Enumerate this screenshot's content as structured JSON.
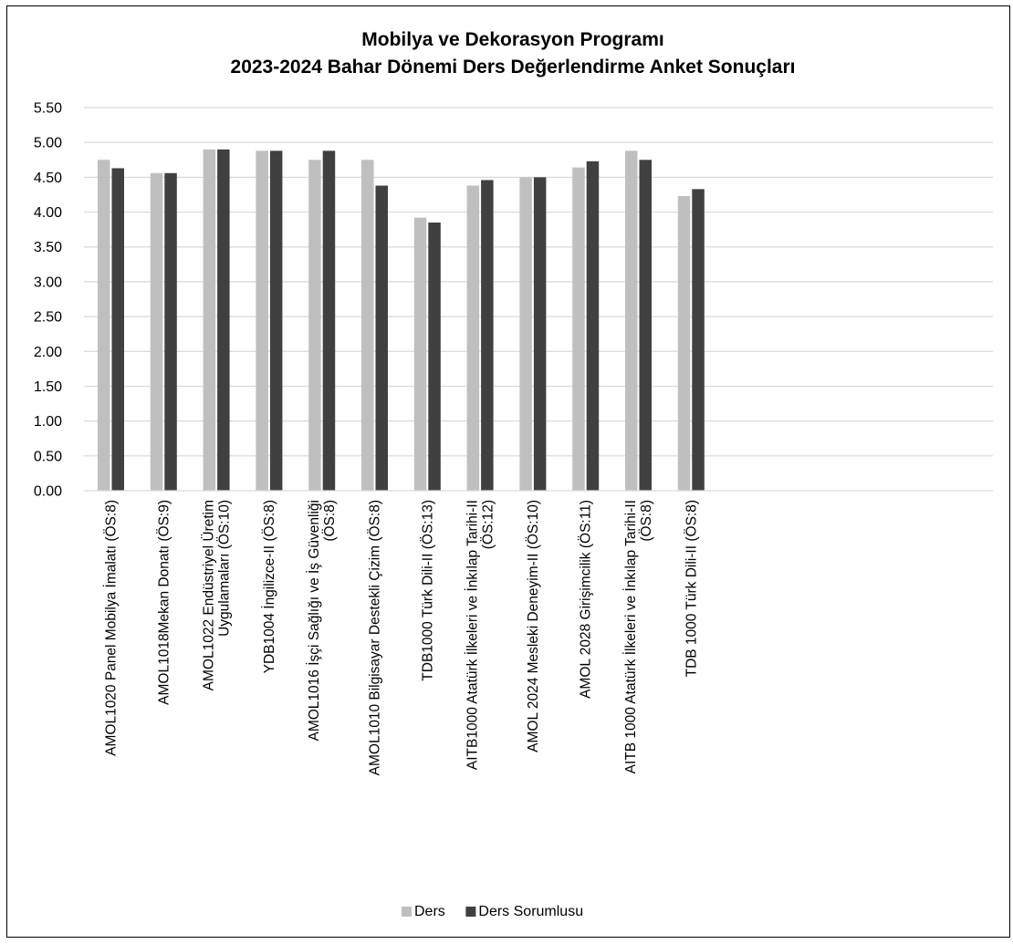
{
  "chart_data": {
    "type": "bar",
    "title": "Mobilya ve Dekorasyon Programı",
    "subtitle": "2023-2024 Bahar Dönemi Ders Değerlendirme Anket Sonuçları",
    "xlabel": "",
    "ylabel": "",
    "ylim": [
      0,
      5.5
    ],
    "yticks": [
      "0.00",
      "0.50",
      "1.00",
      "1.50",
      "2.00",
      "2.50",
      "3.00",
      "3.50",
      "4.00",
      "4.50",
      "5.00",
      "5.50"
    ],
    "grid": true,
    "legend_position": "bottom",
    "categories": [
      [
        "AMOL1020 Panel Mobilya İmalatı (ÖS:8)"
      ],
      [
        "AMOL1018Mekan Donatı (ÖS:9)"
      ],
      [
        "AMOL1022 Endüstriyel Üretim",
        "Uygulamaları (ÖS:10)"
      ],
      [
        "YDB1004 İngilizce-II (ÖS:8)"
      ],
      [
        "AMOL1016 İşçi Sağlığı ve İş Güvenliği",
        "(ÖS:8)"
      ],
      [
        "AMOL1010 Bilgisayar Destekli Çizim (ÖS:8)"
      ],
      [
        "TDB1000 Türk Dili-II (ÖS:13)"
      ],
      [
        "AITB1000 Atatürk İlkeleri ve İnkılap Tarihi-II",
        "(ÖS:12)"
      ],
      [
        "AMOL 2024  Mesleki Deneyim-II (ÖS:10)"
      ],
      [
        "AMOL 2028 Girişimcilik (ÖS:11)"
      ],
      [
        "AITB 1000 Atatürk İlkeleri ve İnkılap Tarihi-II",
        "(ÖS:8)"
      ],
      [
        "TDB 1000 Türk Dili-II (ÖS:8)"
      ]
    ],
    "series": [
      {
        "name": "Ders",
        "color": "#BFBFBF",
        "values": [
          4.75,
          4.56,
          4.9,
          4.88,
          4.75,
          4.75,
          3.92,
          4.38,
          4.5,
          4.64,
          4.88,
          4.23
        ]
      },
      {
        "name": "Ders Sorumlusu",
        "color": "#404040",
        "values": [
          4.63,
          4.56,
          4.9,
          4.88,
          4.88,
          4.38,
          3.85,
          4.46,
          4.5,
          4.73,
          4.75,
          4.33
        ]
      }
    ]
  }
}
